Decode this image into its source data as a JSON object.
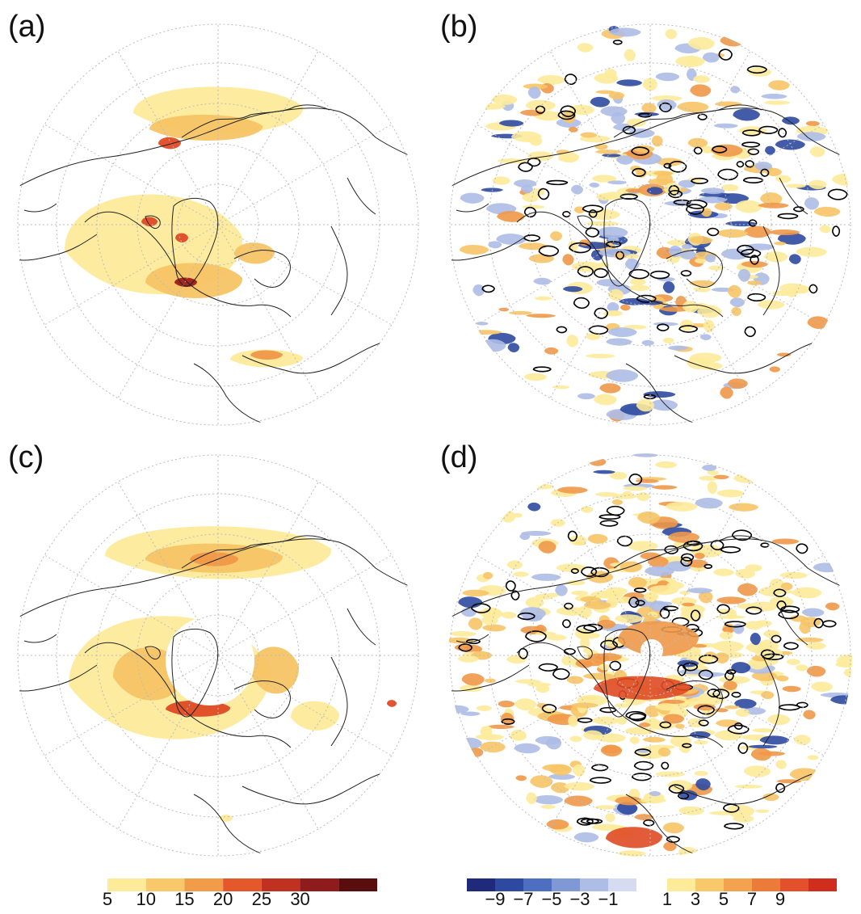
{
  "panels": [
    {
      "id": "a",
      "label": "(a)"
    },
    {
      "id": "b",
      "label": "(b)"
    },
    {
      "id": "c",
      "label": "(c)"
    },
    {
      "id": "d",
      "label": "(d)"
    }
  ],
  "colorbars": [
    {
      "id": "left",
      "colors": [
        "#fdeb9a",
        "#f9c86b",
        "#f29b49",
        "#e5582c",
        "#c0321f",
        "#8e1c1c",
        "#5a0d0d"
      ],
      "ticks": [
        "5",
        "10",
        "15",
        "20",
        "25",
        "30"
      ]
    },
    {
      "id": "right",
      "negative_colors": [
        "#1f2a7a",
        "#2e4aa0",
        "#4e6fbf",
        "#7f99d4",
        "#aebde6",
        "#d5dcf1"
      ],
      "positive_colors": [
        "#fdeb9a",
        "#f9c86b",
        "#f3a24f",
        "#ec7a39",
        "#e3502b",
        "#cf2e1d"
      ],
      "ticks": [
        "−9",
        "−7",
        "−5",
        "−3",
        "−1",
        "1",
        "3",
        "5",
        "7",
        "9"
      ]
    }
  ],
  "map_colors": {
    "fill_light": "#fdeb9a",
    "fill_mid": "#f7c466",
    "fill_high": "#f09848",
    "fill_peak": "#e04a24",
    "fill_dark": "#9e1e1a",
    "neg_light": "#aebde6",
    "neg_dark": "#2e4aa0",
    "coast": "#222222",
    "grid": "#bbbbbb"
  }
}
